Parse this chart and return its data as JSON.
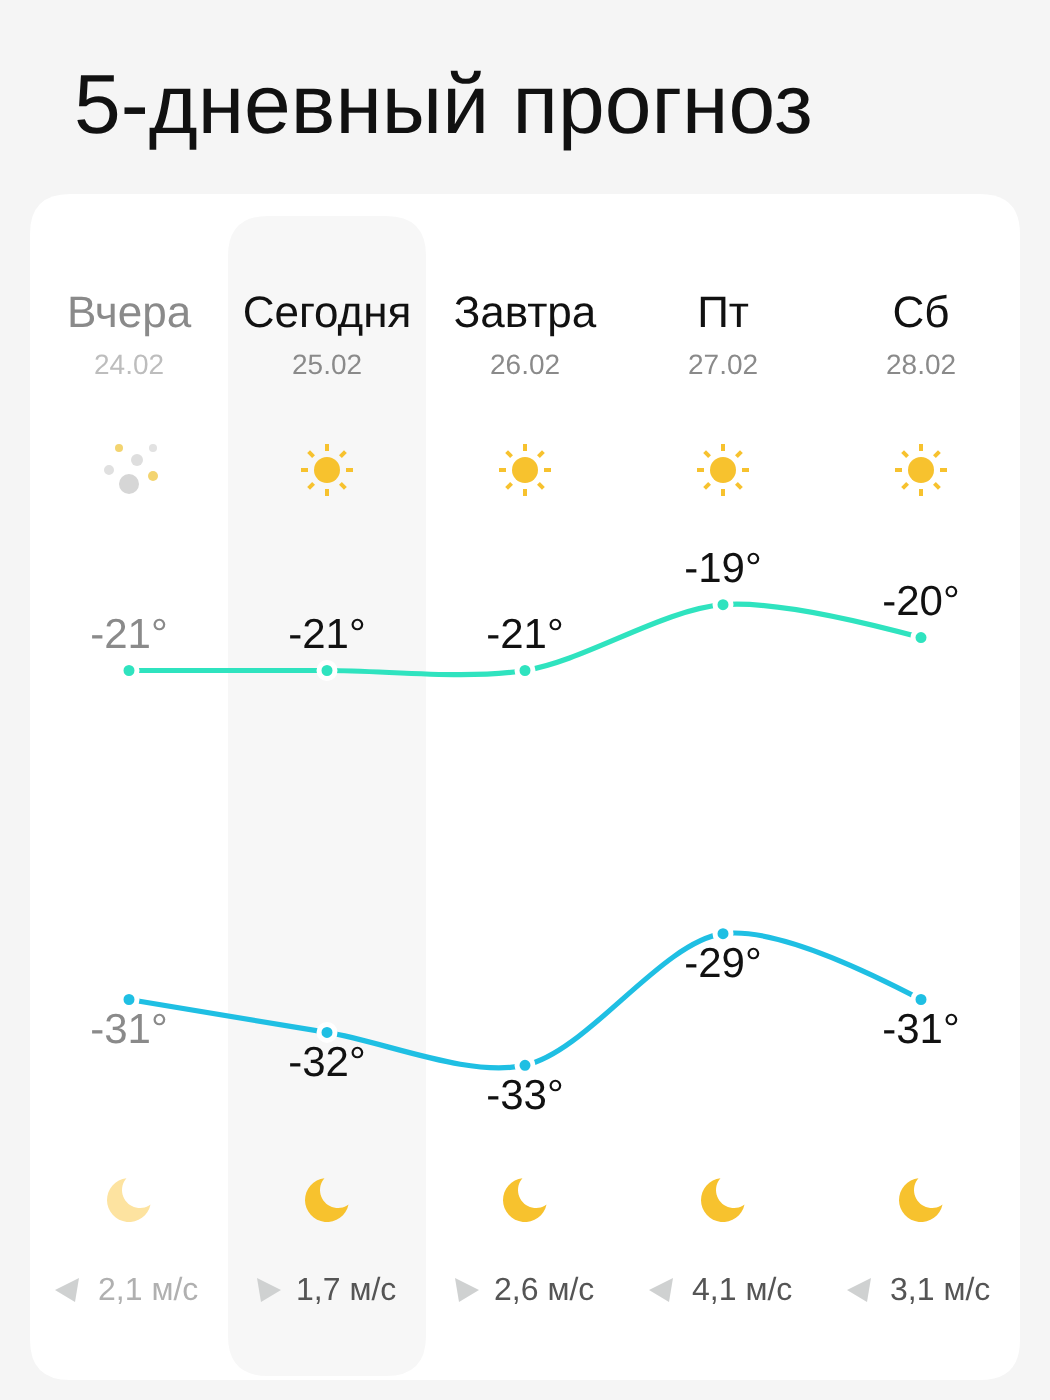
{
  "chart_data": {
    "type": "line",
    "title": "5-дневный прогноз",
    "categories": [
      "Вчера",
      "Сегодня",
      "Завтра",
      "Пт",
      "Сб"
    ],
    "series": [
      {
        "color": "#2fe3bf",
        "values": [
          -21,
          -21,
          -21,
          -19,
          -20
        ],
        "value_labels": [
          "-21°",
          "-21°",
          "-21°",
          "-19°",
          "-20°"
        ]
      },
      {
        "color": "#1fbfe3",
        "values": [
          -31,
          -32,
          -33,
          -29,
          -31
        ],
        "value_labels": [
          "-31°",
          "-32°",
          "-33°",
          "-29°",
          "-31°"
        ]
      }
    ],
    "tick_labels": "x",
    "marker": "circle",
    "line_style": "solid",
    "bands": [
      {
        "axis": "x",
        "from": "Сегодня",
        "to": "Сегодня",
        "color": "#f7f7f7"
      }
    ],
    "annotations": [
      "24.02",
      "25.02",
      "26.02",
      "27.02",
      "28.02",
      "2,1 м/с",
      "1,7 м/с",
      "2,6 м/с",
      "4,1 м/с",
      "3,1 м/с"
    ]
  }
}
